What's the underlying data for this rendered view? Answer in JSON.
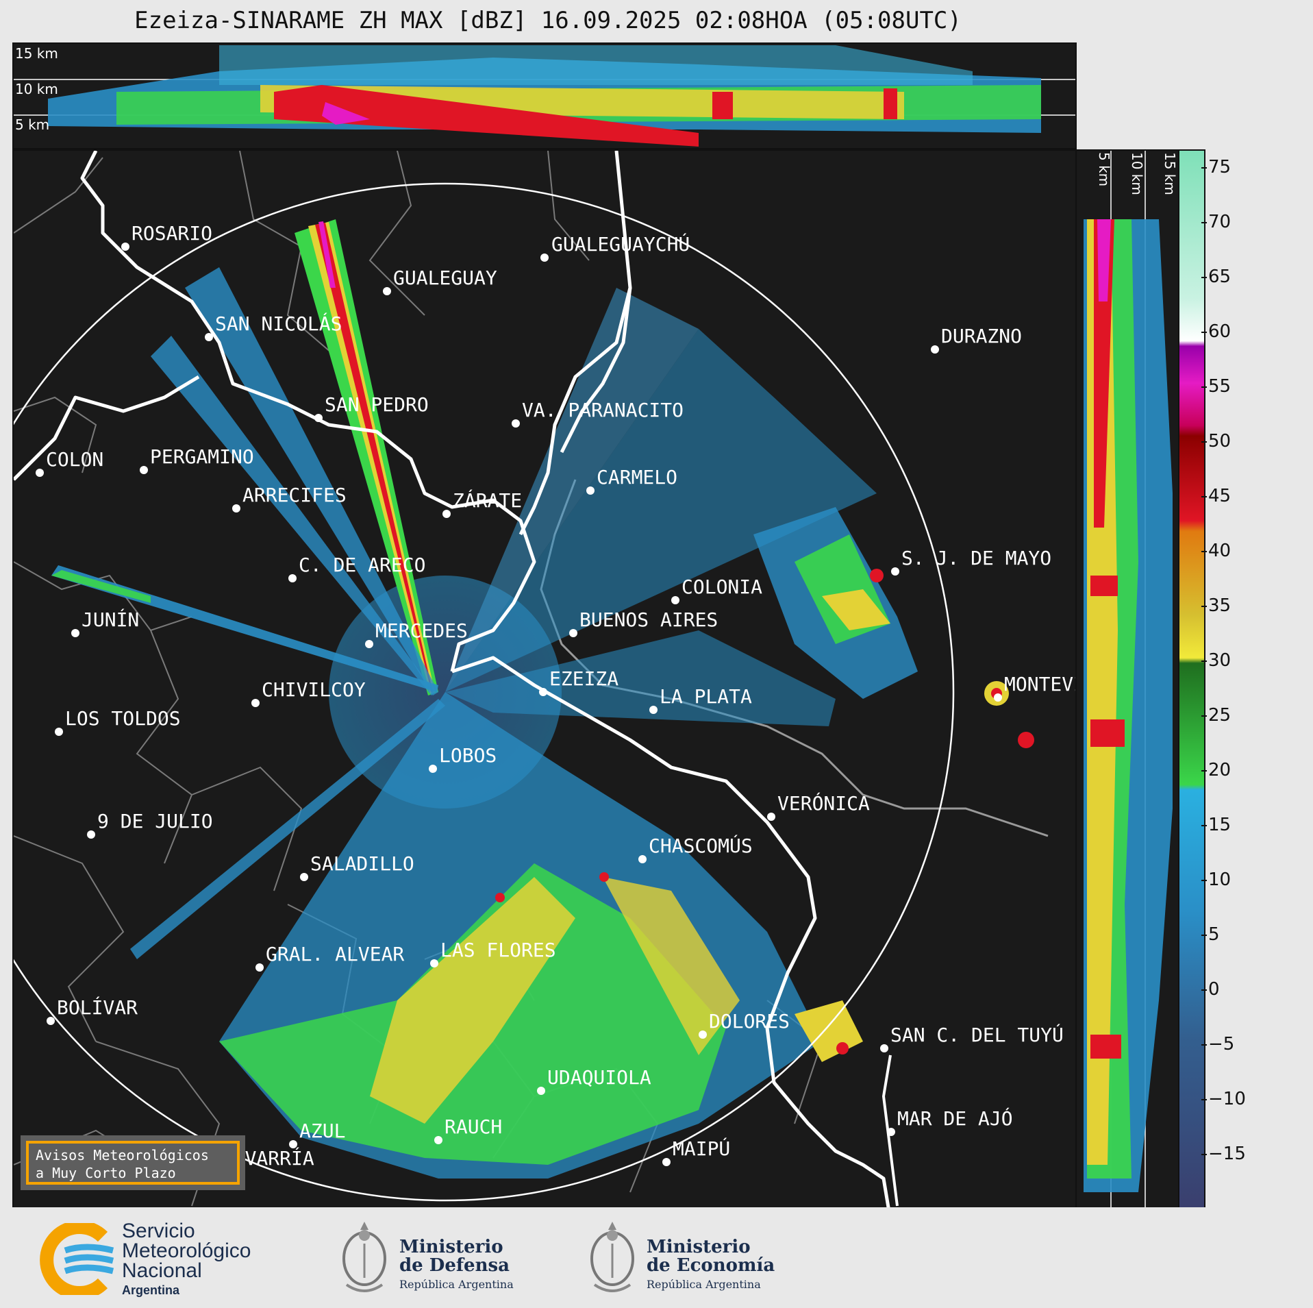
{
  "title": "Ezeiza-SINARAME ZH MAX [dBZ] 16.09.2025 02:08HOA (05:08UTC)",
  "height_labels": [
    "15 km",
    "10 km",
    "5 km"
  ],
  "colorbar": {
    "ticks": [
      "75",
      "70",
      "65",
      "60",
      "55",
      "50",
      "45",
      "40",
      "35",
      "30",
      "25",
      "20",
      "15",
      "10",
      "5",
      "0",
      "−5",
      "−10",
      "−15"
    ]
  },
  "cities": [
    {
      "name": "ROSARIO"
    },
    {
      "name": "GUALEGUAYCHÚ"
    },
    {
      "name": "GUALEGUAY"
    },
    {
      "name": "SAN NICOLÁS"
    },
    {
      "name": "DURAZNO"
    },
    {
      "name": "SAN PEDRO"
    },
    {
      "name": "VA. PARANACITO"
    },
    {
      "name": "COLON"
    },
    {
      "name": "PERGAMINO"
    },
    {
      "name": "CARMELO"
    },
    {
      "name": "ARRECIFES"
    },
    {
      "name": "ZÁRATE"
    },
    {
      "name": "S. J. DE MAYO"
    },
    {
      "name": "C. DE ARECO"
    },
    {
      "name": "COLONIA"
    },
    {
      "name": "JUNÍN"
    },
    {
      "name": "BUENOS AIRES"
    },
    {
      "name": "MERCEDES"
    },
    {
      "name": "MONTEVIDEO"
    },
    {
      "name": "EZEIZA"
    },
    {
      "name": "CHIVILCOY"
    },
    {
      "name": "LA PLATA"
    },
    {
      "name": "LOS TOLDOS"
    },
    {
      "name": "LOBOS"
    },
    {
      "name": "VERÓNICA"
    },
    {
      "name": "9 DE JULIO"
    },
    {
      "name": "CHASCOMÚS"
    },
    {
      "name": "SALADILLO"
    },
    {
      "name": "GRAL. ALVEAR"
    },
    {
      "name": "LAS FLORES"
    },
    {
      "name": "BOLÍVAR"
    },
    {
      "name": "DOLORES"
    },
    {
      "name": "SAN C. DEL TUYÚ"
    },
    {
      "name": "UDAQUIOLA"
    },
    {
      "name": "MAR DE AJÓ"
    },
    {
      "name": "AZUL"
    },
    {
      "name": "RAUCH"
    },
    {
      "name": "OLAVARRÍA"
    },
    {
      "name": "MAIPÚ"
    }
  ],
  "avisos": {
    "line1": "Avisos Meteorológicos",
    "line2": "a Muy Corto Plazo"
  },
  "logos": {
    "smn": {
      "line1": "Servicio",
      "line2": "Meteorológico",
      "line3": "Nacional",
      "line4": "Argentina"
    },
    "defensa": {
      "line1": "Ministerio",
      "line2": "de Defensa",
      "line3": "República Argentina"
    },
    "economia": {
      "line1": "Ministerio",
      "line2": "de Economía",
      "line3": "República Argentina"
    }
  },
  "colors": {
    "background": "#1a1a1a",
    "coast": "#ffffff",
    "borders": "#8a8a8a",
    "accent": "#f5a300"
  }
}
